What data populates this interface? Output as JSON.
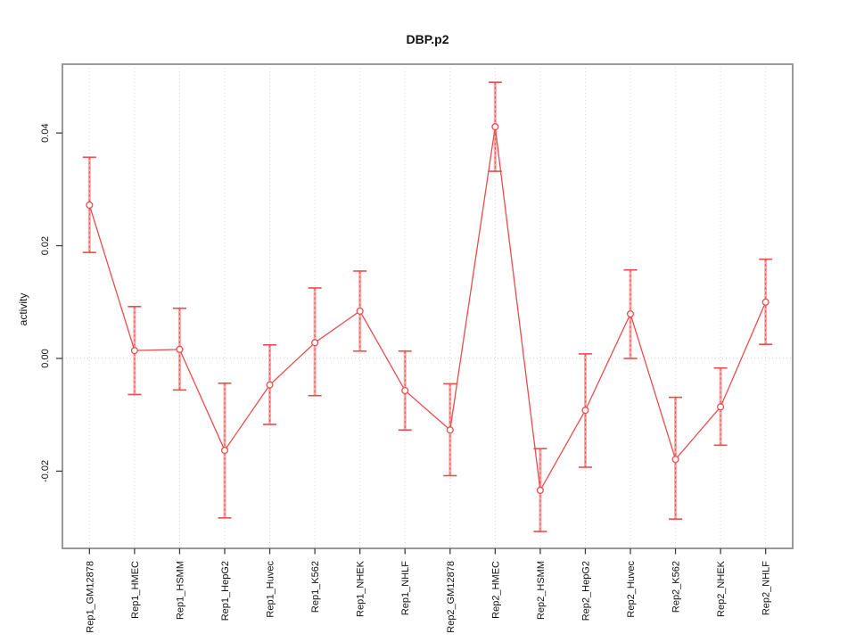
{
  "chart_data": {
    "type": "line",
    "title": "DBP.p2",
    "xlabel": "",
    "ylabel": "activity",
    "categories": [
      "Rep1_GM12878",
      "Rep1_HMEC",
      "Rep1_HSMM",
      "Rep1_HepG2",
      "Rep1_Huvec",
      "Rep1_K562",
      "Rep1_NHEK",
      "Rep1_NHLF",
      "Rep2_GM12878",
      "Rep2_HMEC",
      "Rep2_HSMM",
      "Rep2_HepG2",
      "Rep2_Huvec",
      "Rep2_K562",
      "Rep2_NHEK",
      "Rep2_NHLF"
    ],
    "series": [
      {
        "name": "activity",
        "values": [
          0.0272,
          0.0014,
          0.0016,
          -0.0163,
          -0.0047,
          0.0028,
          0.0084,
          -0.0057,
          -0.0127,
          0.0411,
          -0.0234,
          -0.0092,
          0.0079,
          -0.0179,
          -0.0086,
          0.01
        ],
        "err_low": [
          0.0188,
          -0.0064,
          -0.0056,
          -0.0283,
          -0.0117,
          -0.0066,
          0.0013,
          -0.0127,
          -0.0208,
          0.0332,
          -0.0307,
          -0.0193,
          0.0,
          -0.0285,
          -0.0154,
          0.0025
        ],
        "err_high": [
          0.0357,
          0.0092,
          0.0089,
          -0.0044,
          0.0024,
          0.0125,
          0.0155,
          0.0013,
          -0.0045,
          0.049,
          -0.016,
          0.0008,
          0.0157,
          -0.0069,
          -0.0017,
          0.0176
        ]
      }
    ],
    "ytick_labels": [
      "-0.02",
      "0.00",
      "0.02",
      "0.04"
    ],
    "ytick_values": [
      -0.02,
      0.0,
      0.02,
      0.04
    ],
    "ylim": [
      -0.0337,
      0.0522
    ],
    "grid": {
      "vertical_dotted_per_category": true,
      "zero_line_dotted": true
    },
    "legend": "none",
    "marker": "open-circle",
    "colors": {
      "series": "#e84c4c",
      "error_bar_fill": "#f6acac",
      "grid": "#d8d8d8",
      "zero_line": "#c9c9c9",
      "box": "#8f8f8f",
      "tick": "#3f3f3f",
      "text": "#111111",
      "background": "#ffffff"
    }
  }
}
